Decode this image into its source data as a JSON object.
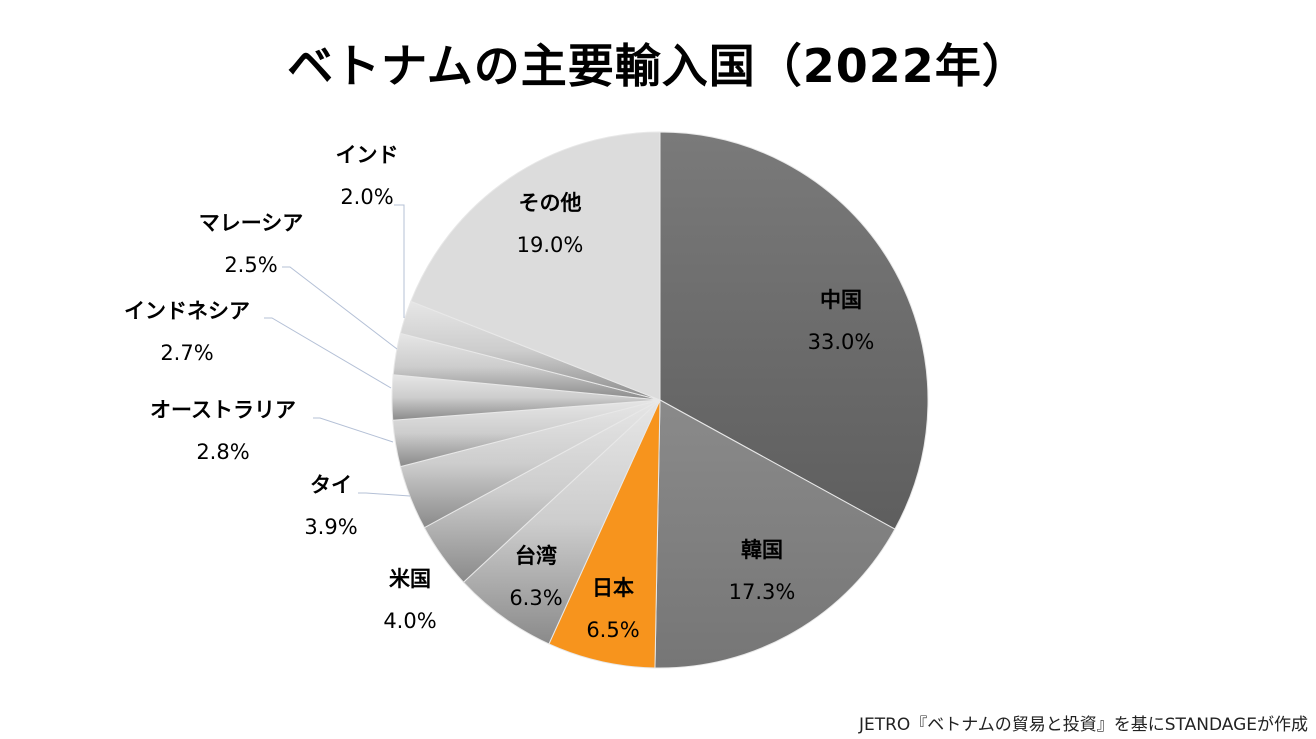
{
  "title": "ベトナムの主要輸入国（2022年）",
  "source": "JETRO『ベトナムの貿易と投資』を基にSTANDAGEが作成",
  "chart_data": {
    "type": "pie",
    "title": "ベトナムの主要輸入国（2022年）",
    "start_angle_deg": 0,
    "direction": "clockwise",
    "unit": "%",
    "categories": [
      "中国",
      "韓国",
      "日本",
      "台湾",
      "米国",
      "タイ",
      "オーストラリア",
      "インドネシア",
      "マレーシア",
      "インド",
      "その他"
    ],
    "values": [
      33.0,
      17.3,
      6.5,
      6.3,
      4.0,
      3.9,
      2.8,
      2.7,
      2.5,
      2.0,
      19.0
    ],
    "labels": [
      "33.0%",
      "17.3%",
      "6.5%",
      "6.3%",
      "4.0%",
      "3.9%",
      "2.8%",
      "2.7%",
      "2.5%",
      "2.0%",
      "19.0%"
    ],
    "highlight": "日本",
    "colors": {
      "中国": "#6a6a6a",
      "韓国": "#7e7e7e",
      "日本": "#f7941d",
      "台湾": "#8c8c8c",
      "米国": "#959595",
      "タイ": "#a0a0a0",
      "オーストラリア": "#ababab",
      "インドネシア": "#b6b6b6",
      "マレーシア": "#c1c1c1",
      "インド": "#cbcbcb",
      "その他": "#dcdcdc"
    },
    "legend": "none (data labels with leader lines)"
  },
  "slices": {
    "china": {
      "name": "中国",
      "pct": "33.0%"
    },
    "korea": {
      "name": "韓国",
      "pct": "17.3%"
    },
    "japan": {
      "name": "日本",
      "pct": "6.5%"
    },
    "taiwan": {
      "name": "台湾",
      "pct": "6.3%"
    },
    "usa": {
      "name": "米国",
      "pct": "4.0%"
    },
    "thailand": {
      "name": "タイ",
      "pct": "3.9%"
    },
    "australia": {
      "name": "オーストラリア",
      "pct": "2.8%"
    },
    "indonesia": {
      "name": "インドネシア",
      "pct": "2.7%"
    },
    "malaysia": {
      "name": "マレーシア",
      "pct": "2.5%"
    },
    "india": {
      "name": "インド",
      "pct": "2.0%"
    },
    "other": {
      "name": "その他",
      "pct": "19.0%"
    }
  }
}
